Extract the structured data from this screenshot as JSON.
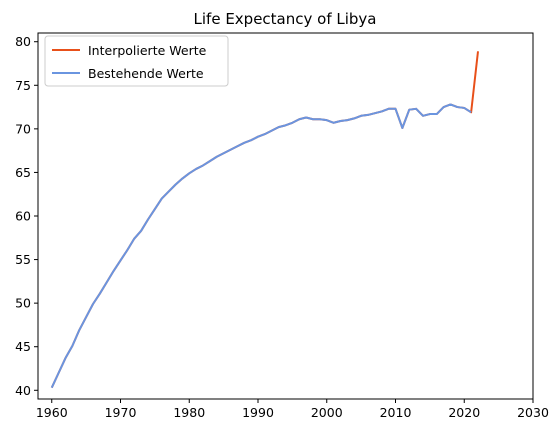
{
  "chart_data": {
    "type": "line",
    "title": "Life Expectancy of Libya",
    "xlabel": "",
    "ylabel": "",
    "xlim": [
      1958,
      2030
    ],
    "ylim": [
      39,
      81
    ],
    "xticks": [
      1960,
      1970,
      1980,
      1990,
      2000,
      2010,
      2020,
      2030
    ],
    "yticks": [
      40,
      45,
      50,
      55,
      60,
      65,
      70,
      75,
      80
    ],
    "legend_position": "top-left",
    "series": [
      {
        "name": "Interpolierte Werte",
        "color": "#e8501a",
        "x": [
          1960,
          1961,
          1962,
          1963,
          1964,
          1965,
          1966,
          1967,
          1968,
          1969,
          1970,
          1971,
          1972,
          1973,
          1974,
          1975,
          1976,
          1977,
          1978,
          1979,
          1980,
          1981,
          1982,
          1983,
          1984,
          1985,
          1986,
          1987,
          1988,
          1989,
          1990,
          1991,
          1992,
          1993,
          1994,
          1995,
          1996,
          1997,
          1998,
          1999,
          2000,
          2001,
          2002,
          2003,
          2004,
          2005,
          2006,
          2007,
          2008,
          2009,
          2010,
          2011,
          2012,
          2013,
          2014,
          2015,
          2016,
          2017,
          2018,
          2019,
          2020,
          2021,
          2022
        ],
        "y": [
          40.3,
          42.0,
          43.7,
          45.1,
          46.9,
          48.4,
          49.9,
          51.1,
          52.4,
          53.7,
          54.9,
          56.1,
          57.4,
          58.3,
          59.6,
          60.8,
          62.0,
          62.8,
          63.6,
          64.3,
          64.9,
          65.4,
          65.8,
          66.3,
          66.8,
          67.2,
          67.6,
          68.0,
          68.4,
          68.7,
          69.1,
          69.4,
          69.8,
          70.2,
          70.4,
          70.7,
          71.1,
          71.3,
          71.1,
          71.1,
          71.0,
          70.7,
          70.9,
          71.0,
          71.2,
          71.5,
          71.6,
          71.8,
          72.0,
          72.3,
          72.3,
          70.1,
          72.2,
          72.3,
          71.5,
          71.7,
          71.7,
          72.5,
          72.8,
          72.5,
          72.4,
          71.9,
          78.9
        ]
      },
      {
        "name": "Bestehende Werte",
        "color": "#6a95e0",
        "x": [
          1960,
          1961,
          1962,
          1963,
          1964,
          1965,
          1966,
          1967,
          1968,
          1969,
          1970,
          1971,
          1972,
          1973,
          1974,
          1975,
          1976,
          1977,
          1978,
          1979,
          1980,
          1981,
          1982,
          1983,
          1984,
          1985,
          1986,
          1987,
          1988,
          1989,
          1990,
          1991,
          1992,
          1993,
          1994,
          1995,
          1996,
          1997,
          1998,
          1999,
          2000,
          2001,
          2002,
          2003,
          2004,
          2005,
          2006,
          2007,
          2008,
          2009,
          2010,
          2011,
          2012,
          2013,
          2014,
          2015,
          2016,
          2017,
          2018,
          2019,
          2020,
          2021
        ],
        "y": [
          40.3,
          42.0,
          43.7,
          45.1,
          46.9,
          48.4,
          49.9,
          51.1,
          52.4,
          53.7,
          54.9,
          56.1,
          57.4,
          58.3,
          59.6,
          60.8,
          62.0,
          62.8,
          63.6,
          64.3,
          64.9,
          65.4,
          65.8,
          66.3,
          66.8,
          67.2,
          67.6,
          68.0,
          68.4,
          68.7,
          69.1,
          69.4,
          69.8,
          70.2,
          70.4,
          70.7,
          71.1,
          71.3,
          71.1,
          71.1,
          71.0,
          70.7,
          70.9,
          71.0,
          71.2,
          71.5,
          71.6,
          71.8,
          72.0,
          72.3,
          72.3,
          70.1,
          72.2,
          72.3,
          71.5,
          71.7,
          71.7,
          72.5,
          72.8,
          72.5,
          72.4,
          71.9
        ]
      }
    ]
  }
}
